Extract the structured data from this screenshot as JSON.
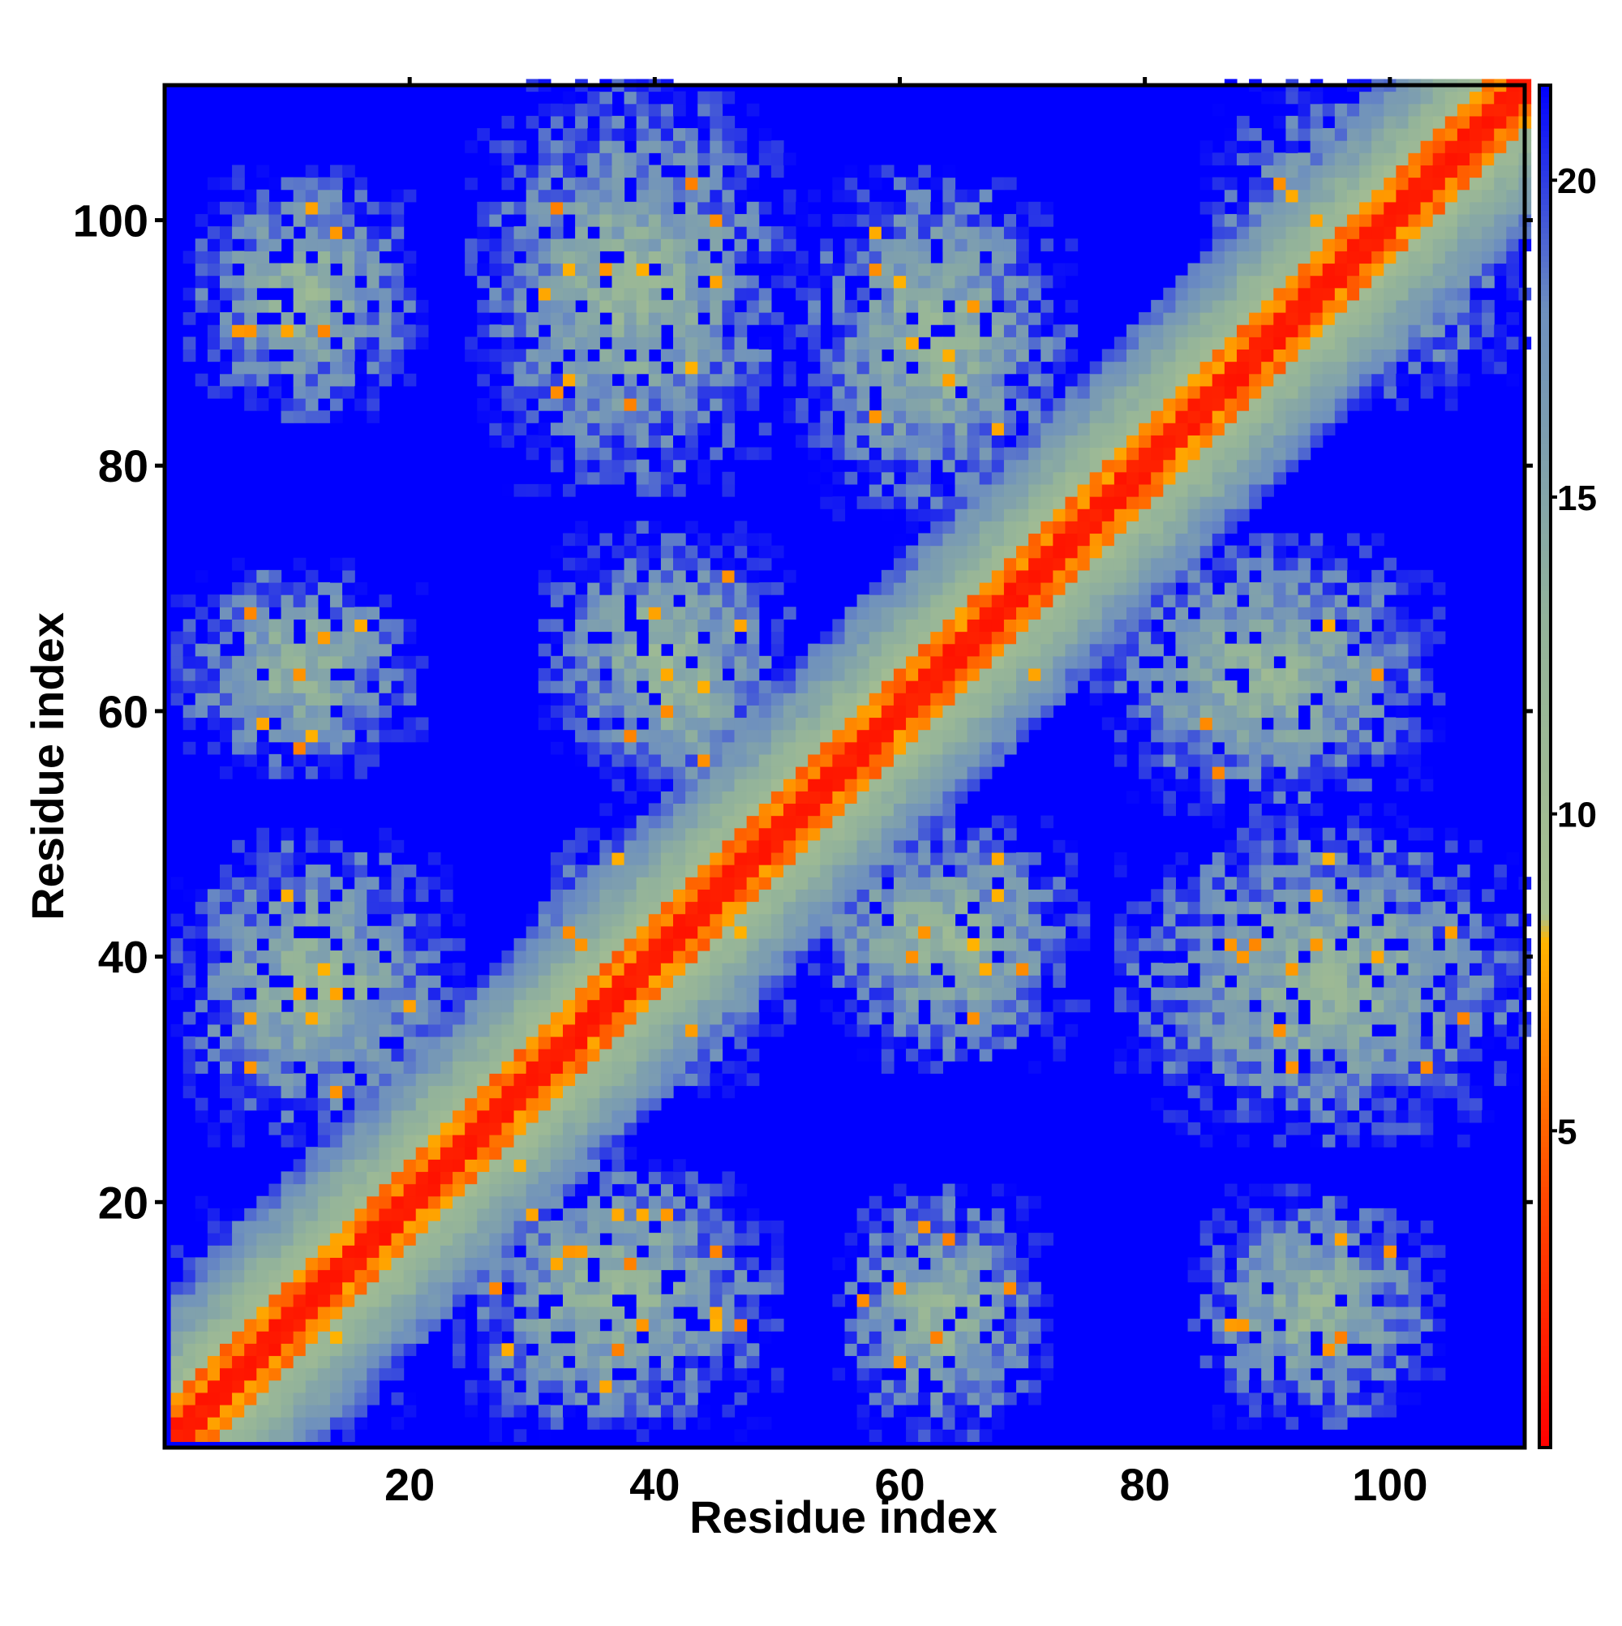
{
  "chart_data": {
    "type": "heatmap",
    "title": "",
    "xlabel": "Residue index",
    "ylabel": "Residue index",
    "x_range": [
      1,
      111
    ],
    "y_range": [
      1,
      111
    ],
    "n_residues": 111,
    "x_ticks": [
      20,
      40,
      60,
      80,
      100
    ],
    "y_ticks": [
      20,
      40,
      60,
      80,
      100
    ],
    "colorbar": {
      "range": [
        0,
        21.5
      ],
      "ticks": [
        5,
        10,
        15,
        20
      ],
      "stops": [
        {
          "value": 0,
          "color": "#ff0000"
        },
        {
          "value": 4,
          "color": "#ff4800"
        },
        {
          "value": 6.5,
          "color": "#ff8c00"
        },
        {
          "value": 8,
          "color": "#ffb400"
        },
        {
          "value": 8.4,
          "color": "#a8c090"
        },
        {
          "value": 13,
          "color": "#93b39a"
        },
        {
          "value": 18,
          "color": "#6d8fbf"
        },
        {
          "value": 21.5,
          "color": "#0000ff"
        }
      ]
    },
    "background_color": "#0000ff",
    "diagonal_band": {
      "core_halfwidth": 1.5,
      "orange_halfwidth": 3.2,
      "outer_halfwidth": 12
    },
    "contact_regions": [
      {
        "x_range": [
          1,
          20
        ],
        "y_range": [
          1,
          20
        ]
      },
      {
        "x_range": [
          20,
          31
        ],
        "y_range": [
          20,
          31
        ]
      },
      {
        "x_range": [
          29,
          51
        ],
        "y_range": [
          29,
          51
        ]
      },
      {
        "x_range": [
          50,
          60
        ],
        "y_range": [
          50,
          60
        ]
      },
      {
        "x_range": [
          60,
          76
        ],
        "y_range": [
          60,
          76
        ]
      },
      {
        "x_range": [
          76,
          85
        ],
        "y_range": [
          76,
          85
        ]
      },
      {
        "x_range": [
          85,
          111
        ],
        "y_range": [
          85,
          111
        ]
      },
      {
        "x_range": [
          1,
          24
        ],
        "y_range": [
          25,
          50
        ]
      },
      {
        "x_range": [
          24,
          50
        ],
        "y_range": [
          1,
          24
        ]
      },
      {
        "x_range": [
          1,
          21
        ],
        "y_range": [
          55,
          72
        ]
      },
      {
        "x_range": [
          55,
          72
        ],
        "y_range": [
          1,
          21
        ]
      },
      {
        "x_range": [
          2,
          21
        ],
        "y_range": [
          84,
          104
        ]
      },
      {
        "x_range": [
          84,
          104
        ],
        "y_range": [
          2,
          21
        ]
      },
      {
        "x_range": [
          25,
          51
        ],
        "y_range": [
          78,
          111
        ]
      },
      {
        "x_range": [
          78,
          111
        ],
        "y_range": [
          25,
          51
        ]
      },
      {
        "x_range": [
          31,
          51
        ],
        "y_range": [
          54,
          75
        ]
      },
      {
        "x_range": [
          54,
          75
        ],
        "y_range": [
          31,
          51
        ]
      },
      {
        "x_range": [
          52,
          74
        ],
        "y_range": [
          76,
          104
        ]
      },
      {
        "x_range": [
          76,
          104
        ],
        "y_range": [
          52,
          74
        ]
      },
      {
        "x_range": [
          52,
          72
        ],
        "y_range": [
          34,
          50
        ]
      },
      {
        "x_range": [
          34,
          50
        ],
        "y_range": [
          52,
          72
        ]
      }
    ]
  }
}
